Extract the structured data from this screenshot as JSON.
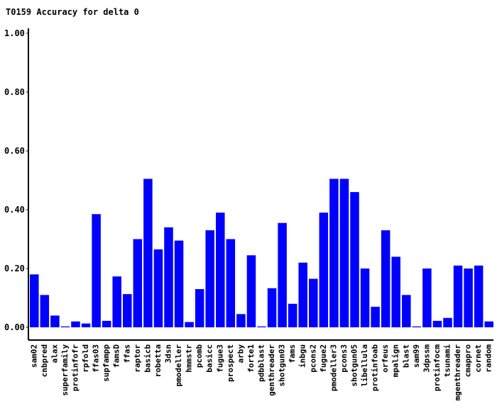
{
  "chart_data": {
    "type": "bar",
    "title": "T0159 Accuracy for delta 0",
    "xlabel": "",
    "ylabel": "",
    "ylim": [
      0,
      1.0
    ],
    "yticks": [
      "0.00",
      "0.20",
      "0.40",
      "0.60",
      "0.80",
      "1.00"
    ],
    "yticks_values": [
      0,
      0.2,
      0.4,
      0.6,
      0.8,
      1.0
    ],
    "bar_color": "#0000ff",
    "categories": [
      "sam02",
      "cnbpred",
      "alax",
      "superfamily",
      "protinfofr",
      "rpfold",
      "ffas03",
      "supfampp",
      "famsD",
      "ffas",
      "raptor",
      "basicb",
      "robetta",
      "3dsn",
      "pmodeller",
      "hmmstr",
      "pcomb",
      "basicc",
      "fugue3",
      "prospect",
      "arby",
      "forte1",
      "pdbblast",
      "genthreader",
      "shotgun03",
      "fams",
      "inbgu",
      "pcons2",
      "fugue2",
      "pmodeller3",
      "pcons3",
      "shotgun05",
      "libellula",
      "protinfoab",
      "orfeus",
      "mpalign",
      "blast",
      "sam99",
      "3dpssm",
      "protinfocm",
      "tsunami",
      "mgenthreader",
      "cmappro",
      "cornet",
      "random"
    ],
    "values": [
      0.18,
      0.11,
      0.04,
      0.003,
      0.02,
      0.013,
      0.385,
      0.022,
      0.173,
      0.113,
      0.3,
      0.505,
      0.265,
      0.34,
      0.295,
      0.018,
      0.13,
      0.33,
      0.39,
      0.3,
      0.045,
      0.245,
      0.003,
      0.133,
      0.355,
      0.08,
      0.22,
      0.165,
      0.39,
      0.505,
      0.505,
      0.46,
      0.2,
      0.07,
      0.33,
      0.24,
      0.11,
      0.003,
      0.2,
      0.022,
      0.032,
      0.21,
      0.2,
      0.21,
      0.02
    ]
  }
}
